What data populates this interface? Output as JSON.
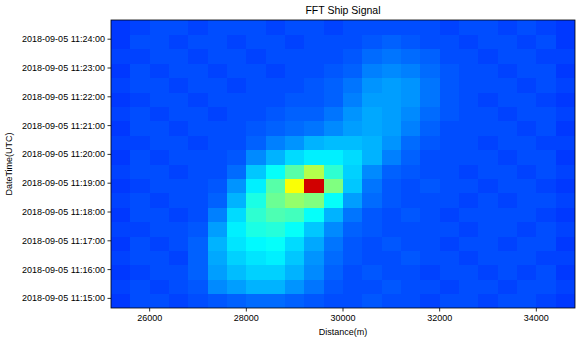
{
  "chart_data": {
    "type": "heatmap",
    "title": "FFT Ship Signal",
    "x_label": "Distance(m)",
    "y_label": "DateTime(UTC)",
    "xlim": [
      25200,
      34800
    ],
    "xticks": [
      26000,
      28000,
      30000,
      32000,
      34000
    ],
    "ylim": [
      "2018-09-05 11:14:40",
      "2018-09-05 11:24:40"
    ],
    "yticks": [
      "2018-09-05 11:15:00",
      "2018-09-05 11:16:00",
      "2018-09-05 11:17:00",
      "2018-09-05 11:18:00",
      "2018-09-05 11:19:00",
      "2018-09-05 11:20:00",
      "2018-09-05 11:21:00",
      "2018-09-05 11:22:00",
      "2018-09-05 11:23:00",
      "2018-09-05 11:24:00"
    ],
    "x_bins": [
      25200,
      25600,
      26000,
      26400,
      26800,
      27200,
      27600,
      28000,
      28400,
      28800,
      29200,
      29600,
      30000,
      30400,
      30800,
      31200,
      31600,
      32000,
      32400,
      32800,
      33200,
      33600,
      34000,
      34400,
      34800
    ],
    "y_bins": [
      "2018-09-05 11:14:40",
      "2018-09-05 11:15:10",
      "2018-09-05 11:15:40",
      "2018-09-05 11:16:10",
      "2018-09-05 11:16:40",
      "2018-09-05 11:17:10",
      "2018-09-05 11:17:40",
      "2018-09-05 11:18:10",
      "2018-09-05 11:18:40",
      "2018-09-05 11:19:10",
      "2018-09-05 11:19:40",
      "2018-09-05 11:20:10",
      "2018-09-05 11:20:40",
      "2018-09-05 11:21:10",
      "2018-09-05 11:21:40",
      "2018-09-05 11:22:10",
      "2018-09-05 11:22:40",
      "2018-09-05 11:23:10",
      "2018-09-05 11:23:40",
      "2018-09-05 11:24:10",
      "2018-09-05 11:24:40"
    ],
    "zlim": [
      0,
      1
    ],
    "cells": [
      [
        0.18,
        0.2,
        0.2,
        0.19,
        0.2,
        0.21,
        0.22,
        0.23,
        0.23,
        0.22,
        0.21,
        0.2,
        0.2,
        0.21,
        0.2,
        0.2,
        0.19,
        0.2,
        0.2,
        0.19,
        0.2,
        0.2,
        0.19,
        0.18
      ],
      [
        0.19,
        0.2,
        0.19,
        0.2,
        0.21,
        0.26,
        0.28,
        0.3,
        0.3,
        0.27,
        0.24,
        0.21,
        0.2,
        0.2,
        0.21,
        0.2,
        0.2,
        0.19,
        0.2,
        0.2,
        0.19,
        0.2,
        0.2,
        0.19
      ],
      [
        0.18,
        0.19,
        0.2,
        0.2,
        0.22,
        0.28,
        0.31,
        0.33,
        0.33,
        0.3,
        0.26,
        0.22,
        0.2,
        0.21,
        0.2,
        0.2,
        0.19,
        0.2,
        0.2,
        0.19,
        0.2,
        0.19,
        0.2,
        0.18
      ],
      [
        0.19,
        0.2,
        0.2,
        0.19,
        0.22,
        0.29,
        0.33,
        0.35,
        0.36,
        0.32,
        0.27,
        0.23,
        0.21,
        0.2,
        0.2,
        0.21,
        0.2,
        0.2,
        0.19,
        0.2,
        0.2,
        0.2,
        0.19,
        0.19
      ],
      [
        0.18,
        0.2,
        0.19,
        0.2,
        0.22,
        0.3,
        0.35,
        0.37,
        0.38,
        0.34,
        0.29,
        0.24,
        0.21,
        0.2,
        0.21,
        0.2,
        0.2,
        0.19,
        0.2,
        0.2,
        0.19,
        0.2,
        0.2,
        0.18
      ],
      [
        0.19,
        0.19,
        0.2,
        0.2,
        0.21,
        0.28,
        0.36,
        0.4,
        0.41,
        0.38,
        0.32,
        0.26,
        0.22,
        0.21,
        0.2,
        0.2,
        0.2,
        0.2,
        0.19,
        0.2,
        0.2,
        0.19,
        0.2,
        0.19
      ],
      [
        0.18,
        0.2,
        0.2,
        0.19,
        0.2,
        0.25,
        0.34,
        0.42,
        0.45,
        0.44,
        0.38,
        0.3,
        0.24,
        0.21,
        0.2,
        0.21,
        0.2,
        0.19,
        0.2,
        0.2,
        0.2,
        0.2,
        0.19,
        0.18
      ],
      [
        0.19,
        0.2,
        0.19,
        0.2,
        0.2,
        0.22,
        0.3,
        0.4,
        0.48,
        0.52,
        0.5,
        0.38,
        0.28,
        0.23,
        0.21,
        0.2,
        0.2,
        0.2,
        0.19,
        0.2,
        0.19,
        0.2,
        0.2,
        0.19
      ],
      [
        0.18,
        0.19,
        0.2,
        0.2,
        0.2,
        0.21,
        0.27,
        0.36,
        0.46,
        0.62,
        0.92,
        0.5,
        0.32,
        0.24,
        0.21,
        0.2,
        0.21,
        0.2,
        0.2,
        0.19,
        0.2,
        0.2,
        0.19,
        0.18
      ],
      [
        0.19,
        0.2,
        0.2,
        0.19,
        0.2,
        0.2,
        0.23,
        0.32,
        0.38,
        0.46,
        0.55,
        0.42,
        0.33,
        0.26,
        0.22,
        0.21,
        0.2,
        0.2,
        0.19,
        0.2,
        0.2,
        0.19,
        0.2,
        0.19
      ],
      [
        0.18,
        0.2,
        0.19,
        0.2,
        0.2,
        0.2,
        0.21,
        0.26,
        0.3,
        0.34,
        0.36,
        0.36,
        0.34,
        0.3,
        0.25,
        0.22,
        0.2,
        0.2,
        0.2,
        0.2,
        0.19,
        0.2,
        0.2,
        0.18
      ],
      [
        0.19,
        0.19,
        0.2,
        0.2,
        0.19,
        0.2,
        0.2,
        0.22,
        0.25,
        0.27,
        0.3,
        0.31,
        0.31,
        0.3,
        0.27,
        0.23,
        0.21,
        0.2,
        0.2,
        0.19,
        0.2,
        0.2,
        0.19,
        0.19
      ],
      [
        0.18,
        0.2,
        0.2,
        0.19,
        0.2,
        0.2,
        0.2,
        0.21,
        0.22,
        0.23,
        0.24,
        0.26,
        0.28,
        0.29,
        0.28,
        0.25,
        0.22,
        0.2,
        0.2,
        0.2,
        0.2,
        0.19,
        0.2,
        0.18
      ],
      [
        0.19,
        0.2,
        0.19,
        0.2,
        0.2,
        0.19,
        0.2,
        0.2,
        0.21,
        0.22,
        0.22,
        0.24,
        0.27,
        0.29,
        0.28,
        0.26,
        0.23,
        0.21,
        0.2,
        0.2,
        0.19,
        0.2,
        0.2,
        0.19
      ],
      [
        0.18,
        0.19,
        0.2,
        0.2,
        0.19,
        0.2,
        0.2,
        0.2,
        0.2,
        0.21,
        0.21,
        0.22,
        0.25,
        0.28,
        0.28,
        0.27,
        0.24,
        0.21,
        0.2,
        0.19,
        0.2,
        0.2,
        0.19,
        0.18
      ],
      [
        0.19,
        0.2,
        0.2,
        0.19,
        0.2,
        0.2,
        0.19,
        0.2,
        0.2,
        0.2,
        0.21,
        0.22,
        0.24,
        0.27,
        0.28,
        0.27,
        0.24,
        0.21,
        0.2,
        0.2,
        0.2,
        0.19,
        0.2,
        0.19
      ],
      [
        0.18,
        0.2,
        0.19,
        0.2,
        0.2,
        0.19,
        0.2,
        0.2,
        0.19,
        0.2,
        0.2,
        0.21,
        0.22,
        0.25,
        0.26,
        0.25,
        0.23,
        0.21,
        0.2,
        0.2,
        0.19,
        0.2,
        0.2,
        0.18
      ],
      [
        0.19,
        0.19,
        0.2,
        0.2,
        0.19,
        0.2,
        0.2,
        0.19,
        0.2,
        0.2,
        0.2,
        0.2,
        0.21,
        0.23,
        0.24,
        0.23,
        0.22,
        0.2,
        0.2,
        0.19,
        0.2,
        0.2,
        0.19,
        0.19
      ],
      [
        0.18,
        0.2,
        0.2,
        0.19,
        0.2,
        0.2,
        0.19,
        0.2,
        0.2,
        0.19,
        0.2,
        0.2,
        0.2,
        0.21,
        0.22,
        0.21,
        0.2,
        0.2,
        0.19,
        0.2,
        0.2,
        0.19,
        0.2,
        0.18
      ],
      [
        0.18,
        0.19,
        0.2,
        0.2,
        0.19,
        0.2,
        0.2,
        0.2,
        0.19,
        0.2,
        0.2,
        0.19,
        0.2,
        0.2,
        0.2,
        0.2,
        0.2,
        0.19,
        0.2,
        0.2,
        0.19,
        0.2,
        0.19,
        0.18
      ]
    ]
  }
}
